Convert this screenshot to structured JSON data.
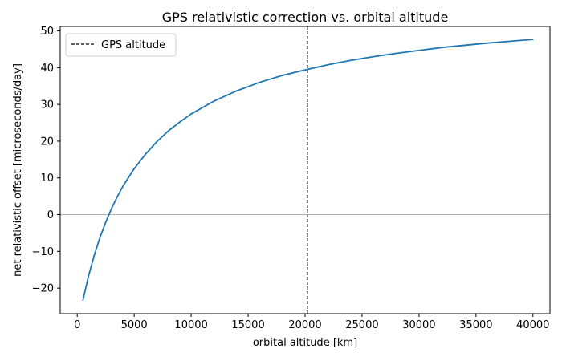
{
  "chart_data": {
    "type": "line",
    "title": "GPS relativistic correction vs. orbital altitude",
    "xlabel": "orbital altitude [km]",
    "ylabel": "net relativistic offset [microseconds/day]",
    "xlim": [
      -1495,
      41495
    ],
    "ylim": [
      -26.97,
      51.22
    ],
    "xticks": [
      0,
      5000,
      10000,
      15000,
      20000,
      25000,
      30000,
      35000,
      40000
    ],
    "yticks": [
      -20,
      -10,
      0,
      10,
      20,
      30,
      40,
      50
    ],
    "grid": false,
    "legend_position": "top-left",
    "series": [
      {
        "name": "",
        "color": "#1f77b4",
        "x": [
          500,
          1000,
          1500,
          2000,
          2500,
          3000,
          3500,
          4000,
          5000,
          6000,
          7000,
          8000,
          9000,
          10000,
          12000,
          14000,
          16000,
          18000,
          20000,
          22000,
          24000,
          26000,
          28000,
          30000,
          32000,
          34000,
          36000,
          38000,
          40000
        ],
        "y": [
          -23.3,
          -16.6,
          -11.0,
          -6.2,
          -2.1,
          1.6,
          4.8,
          7.7,
          12.5,
          16.5,
          19.9,
          22.8,
          25.2,
          27.4,
          30.9,
          33.7,
          36.0,
          37.9,
          39.4,
          40.8,
          42.0,
          43.0,
          43.9,
          44.7,
          45.5,
          46.1,
          46.7,
          47.2,
          47.7
        ]
      }
    ],
    "reference_lines": [
      {
        "orientation": "vertical",
        "x": 20200,
        "label": "GPS altitude",
        "color": "#000000",
        "style": "dashed"
      },
      {
        "orientation": "horizontal",
        "y": 0,
        "color": "#999999",
        "style": "solid"
      }
    ]
  }
}
